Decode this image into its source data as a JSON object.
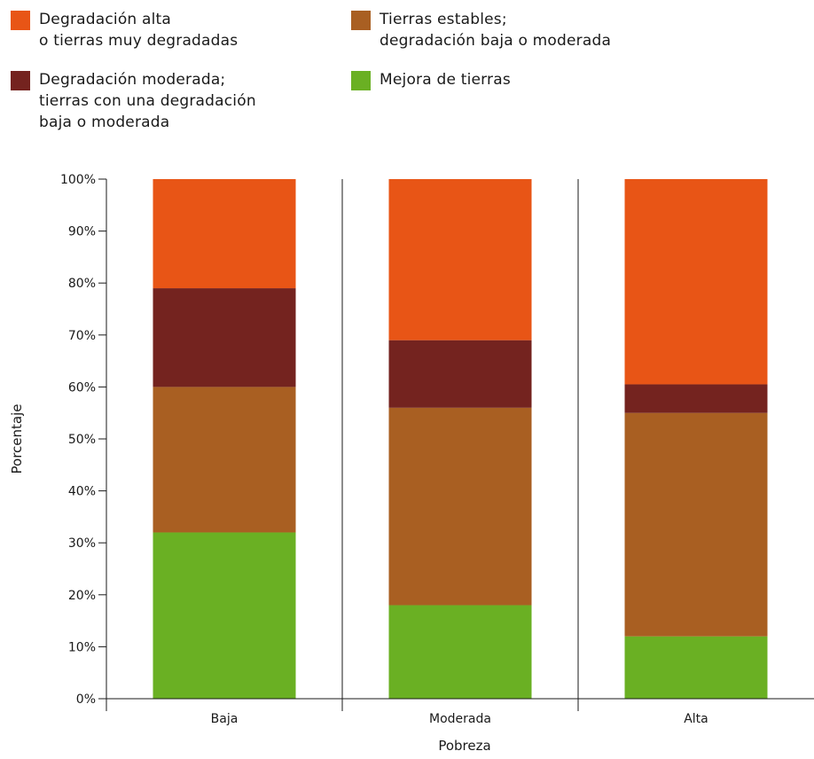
{
  "chart_data": {
    "type": "bar",
    "stacked": true,
    "orientation": "vertical",
    "categories": [
      "Baja",
      "Moderada",
      "Alta"
    ],
    "xlabel": "Pobreza",
    "ylabel": "Porcentaje",
    "ylim": [
      0,
      100
    ],
    "yticks": [
      "0%",
      "10%",
      "20%",
      "30%",
      "40%",
      "50%",
      "60%",
      "70%",
      "80%",
      "90%",
      "100%"
    ],
    "grid": false,
    "legend_position": "top",
    "series": [
      {
        "name": "Mejora de tierras",
        "color": "#6ab023",
        "values": [
          32,
          18,
          12
        ]
      },
      {
        "name": "Tierras estables; degradación baja o moderada",
        "color": "#a95f22",
        "values": [
          28,
          38,
          43
        ]
      },
      {
        "name": "Degradación moderada; tierras con una degradación baja o moderada",
        "color": "#74231f",
        "values": [
          19,
          13,
          5.5
        ]
      },
      {
        "name": "Degradación alta o tierras muy degradadas",
        "color": "#e85516",
        "values": [
          21,
          31,
          39.5
        ]
      }
    ]
  },
  "legend": {
    "high": {
      "line1": "Degradación alta",
      "line2": "o tierras muy degradadas",
      "color": "#e85516"
    },
    "stable": {
      "line1": "Tierras estables;",
      "line2": "degradación baja o moderada",
      "color": "#a95f22"
    },
    "moderate": {
      "line1": "Degradación moderada;",
      "line2": "tierras con una degradación",
      "line3": "baja o moderada",
      "color": "#74231f"
    },
    "improve": {
      "line1": "Mejora de tierras",
      "color": "#6ab023"
    }
  }
}
